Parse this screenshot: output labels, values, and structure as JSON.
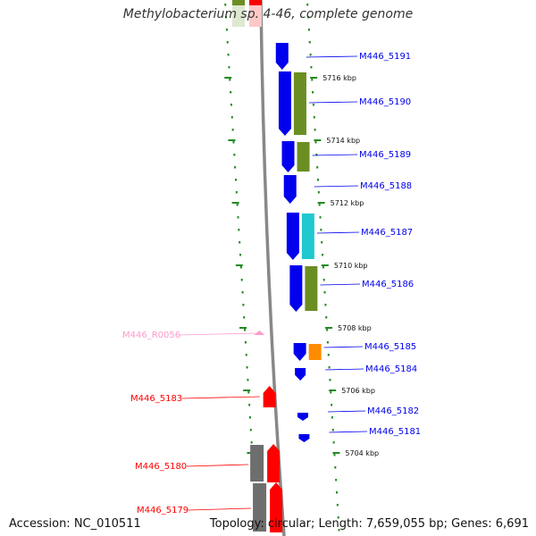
{
  "title": "Methylobacterium sp. 4-46, complete genome",
  "footer": {
    "accession": "Accession: NC_010511",
    "summary": "Topology: circular; Length: 7,659,055 bp; Genes: 6,691"
  },
  "colors": {
    "forward_gene": "#ff0000",
    "reverse_gene": "#0000ee",
    "cog_green": "#6b8e23",
    "cog_cyan": "#20c8d0",
    "cog_orange": "#ff8c00",
    "rna": "#ff99cc",
    "backbone": "#888888",
    "tick_green": "#228b22"
  },
  "scale_ticks": [
    {
      "label": "5716 kbp"
    },
    {
      "label": "5714 kbp"
    },
    {
      "label": "5712 kbp"
    },
    {
      "label": "5710 kbp"
    },
    {
      "label": "5708 kbp"
    },
    {
      "label": "5706 kbp"
    },
    {
      "label": "5704 kbp"
    }
  ],
  "genes": [
    {
      "name": "M446_5191",
      "strand": "reverse",
      "cog": ""
    },
    {
      "name": "M446_5190",
      "strand": "reverse",
      "cog": "green"
    },
    {
      "name": "M446_5189",
      "strand": "reverse",
      "cog": "green"
    },
    {
      "name": "M446_5188",
      "strand": "reverse",
      "cog": ""
    },
    {
      "name": "M446_5187",
      "strand": "reverse",
      "cog": "cyan"
    },
    {
      "name": "M446_5186",
      "strand": "reverse",
      "cog": "green"
    },
    {
      "name": "M446_R0056",
      "strand": "forward",
      "cog": "rna"
    },
    {
      "name": "M446_5185",
      "strand": "reverse",
      "cog": "orange"
    },
    {
      "name": "M446_5184",
      "strand": "reverse",
      "cog": ""
    },
    {
      "name": "M446_5183",
      "strand": "forward",
      "cog": ""
    },
    {
      "name": "M446_5182",
      "strand": "reverse",
      "cog": ""
    },
    {
      "name": "M446_5181",
      "strand": "reverse",
      "cog": ""
    },
    {
      "name": "M446_5180",
      "strand": "forward",
      "cog": "gray"
    },
    {
      "name": "M446_5179",
      "strand": "forward",
      "cog": "gray"
    }
  ]
}
